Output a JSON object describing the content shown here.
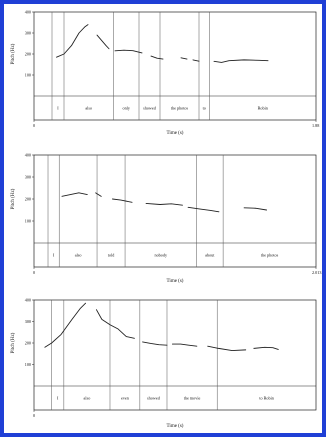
{
  "chart_data": [
    {
      "type": "line",
      "xlabel": "Time (s)",
      "ylabel": "Pitch (Hz)",
      "xlim": [
        0,
        1.88
      ],
      "ylim": [
        0,
        400
      ],
      "x_ticks": [
        "0",
        "1.88"
      ],
      "y_ticks": [
        "100",
        "200",
        "300",
        "400"
      ],
      "segment_boundaries": [
        0.12,
        0.2,
        0.53,
        0.7,
        0.84,
        1.1,
        1.17,
        1.88
      ],
      "segments": [
        {
          "label": "I",
          "start": 0.12,
          "end": 0.2
        },
        {
          "label": "also",
          "start": 0.2,
          "end": 0.53
        },
        {
          "label": "only",
          "start": 0.53,
          "end": 0.7
        },
        {
          "label": "showed",
          "start": 0.7,
          "end": 0.84
        },
        {
          "label": "the photos",
          "start": 0.84,
          "end": 1.1
        },
        {
          "label": "to",
          "start": 1.1,
          "end": 1.17
        },
        {
          "label": "Robin",
          "start": 1.17,
          "end": 1.88
        }
      ],
      "series": [
        {
          "name": "",
          "points": [
            [
              0.15,
              185
            ],
            [
              0.2,
              200
            ],
            [
              0.25,
              240
            ],
            [
              0.3,
              300
            ],
            [
              0.34,
              330
            ],
            [
              0.36,
              340
            ]
          ]
        },
        {
          "name": "",
          "points": [
            [
              0.42,
              290
            ],
            [
              0.45,
              265
            ],
            [
              0.48,
              240
            ],
            [
              0.5,
              225
            ]
          ]
        },
        {
          "name": "",
          "points": [
            [
              0.54,
              215
            ],
            [
              0.6,
              218
            ],
            [
              0.66,
              216
            ],
            [
              0.72,
              205
            ]
          ]
        },
        {
          "name": "",
          "points": [
            [
              0.78,
              190
            ],
            [
              0.82,
              180
            ],
            [
              0.86,
              176
            ]
          ]
        },
        {
          "name": "",
          "points": [
            [
              0.98,
              182
            ],
            [
              1.02,
              176
            ]
          ]
        },
        {
          "name": "",
          "points": [
            [
              1.06,
              172
            ],
            [
              1.1,
              166
            ]
          ]
        },
        {
          "name": "",
          "points": [
            [
              1.2,
              165
            ],
            [
              1.25,
              160
            ],
            [
              1.3,
              168
            ],
            [
              1.4,
              172
            ],
            [
              1.5,
              170
            ],
            [
              1.56,
              168
            ]
          ]
        }
      ]
    },
    {
      "type": "line",
      "xlabel": "Time (s)",
      "ylabel": "Pitch (Hz)",
      "xlim": [
        0,
        2.013
      ],
      "ylim": [
        0,
        400
      ],
      "x_ticks": [
        "0",
        "2.013"
      ],
      "y_ticks": [
        "100",
        "200",
        "300",
        "400"
      ],
      "segment_boundaries": [
        0.1,
        0.18,
        0.45,
        0.65,
        1.16,
        1.35,
        2.013
      ],
      "segments": [
        {
          "label": "I",
          "start": 0.1,
          "end": 0.18
        },
        {
          "label": "also",
          "start": 0.18,
          "end": 0.45
        },
        {
          "label": "told",
          "start": 0.45,
          "end": 0.65
        },
        {
          "label": "nobody",
          "start": 0.65,
          "end": 1.16
        },
        {
          "label": "about",
          "start": 1.16,
          "end": 1.35
        },
        {
          "label": "the photos",
          "start": 1.35,
          "end": 2.013
        }
      ],
      "series": [
        {
          "name": "",
          "points": [
            [
              0.2,
              212
            ],
            [
              0.26,
              220
            ],
            [
              0.32,
              228
            ],
            [
              0.38,
              220
            ]
          ]
        },
        {
          "name": "",
          "points": [
            [
              0.44,
              228
            ],
            [
              0.48,
              212
            ]
          ]
        },
        {
          "name": "",
          "points": [
            [
              0.56,
              200
            ],
            [
              0.62,
              195
            ],
            [
              0.7,
              185
            ]
          ]
        },
        {
          "name": "",
          "points": [
            [
              0.8,
              180
            ],
            [
              0.9,
              175
            ],
            [
              0.98,
              178
            ],
            [
              1.06,
              172
            ]
          ]
        },
        {
          "name": "",
          "points": [
            [
              1.1,
              162
            ],
            [
              1.18,
              155
            ],
            [
              1.26,
              148
            ],
            [
              1.32,
              142
            ]
          ]
        },
        {
          "name": "",
          "points": [
            [
              1.5,
              160
            ],
            [
              1.58,
              158
            ],
            [
              1.66,
              150
            ]
          ]
        }
      ]
    },
    {
      "type": "line",
      "xlabel": "Time (s)",
      "ylabel": "Pitch (Hz)",
      "xlim": [
        0,
        2.078
      ],
      "ylim": [
        0,
        400
      ],
      "x_ticks": [
        "0"
      ],
      "y_ticks": [
        "100",
        "200",
        "300",
        "400"
      ],
      "segment_boundaries": [
        0.13,
        0.22,
        0.56,
        0.78,
        0.98,
        1.35,
        2.078
      ],
      "segments": [
        {
          "label": "I",
          "start": 0.13,
          "end": 0.22
        },
        {
          "label": "also",
          "start": 0.22,
          "end": 0.56
        },
        {
          "label": "even",
          "start": 0.56,
          "end": 0.78
        },
        {
          "label": "showed",
          "start": 0.78,
          "end": 0.98
        },
        {
          "label": "the movie",
          "start": 0.98,
          "end": 1.35
        },
        {
          "label": "to Robin",
          "start": 1.35,
          "end": 2.078
        }
      ],
      "series": [
        {
          "name": "",
          "points": [
            [
              0.08,
              180
            ],
            [
              0.13,
              200
            ],
            [
              0.2,
              240
            ],
            [
              0.28,
              310
            ],
            [
              0.34,
              360
            ],
            [
              0.38,
              385
            ]
          ]
        },
        {
          "name": "",
          "points": [
            [
              0.46,
              355
            ],
            [
              0.5,
              310
            ],
            [
              0.56,
              285
            ],
            [
              0.62,
              265
            ],
            [
              0.68,
              230
            ],
            [
              0.74,
              222
            ]
          ]
        },
        {
          "name": "",
          "points": [
            [
              0.8,
              205
            ],
            [
              0.86,
              198
            ],
            [
              0.92,
              192
            ],
            [
              0.98,
              190
            ]
          ]
        },
        {
          "name": "",
          "points": [
            [
              1.02,
              195
            ],
            [
              1.08,
              195
            ],
            [
              1.14,
              190
            ],
            [
              1.2,
              185
            ]
          ]
        },
        {
          "name": "",
          "points": [
            [
              1.28,
              185
            ],
            [
              1.36,
              175
            ],
            [
              1.46,
              165
            ],
            [
              1.56,
              168
            ]
          ]
        },
        {
          "name": "",
          "points": [
            [
              1.62,
              175
            ],
            [
              1.7,
              180
            ],
            [
              1.76,
              178
            ],
            [
              1.8,
              170
            ]
          ]
        }
      ]
    }
  ]
}
